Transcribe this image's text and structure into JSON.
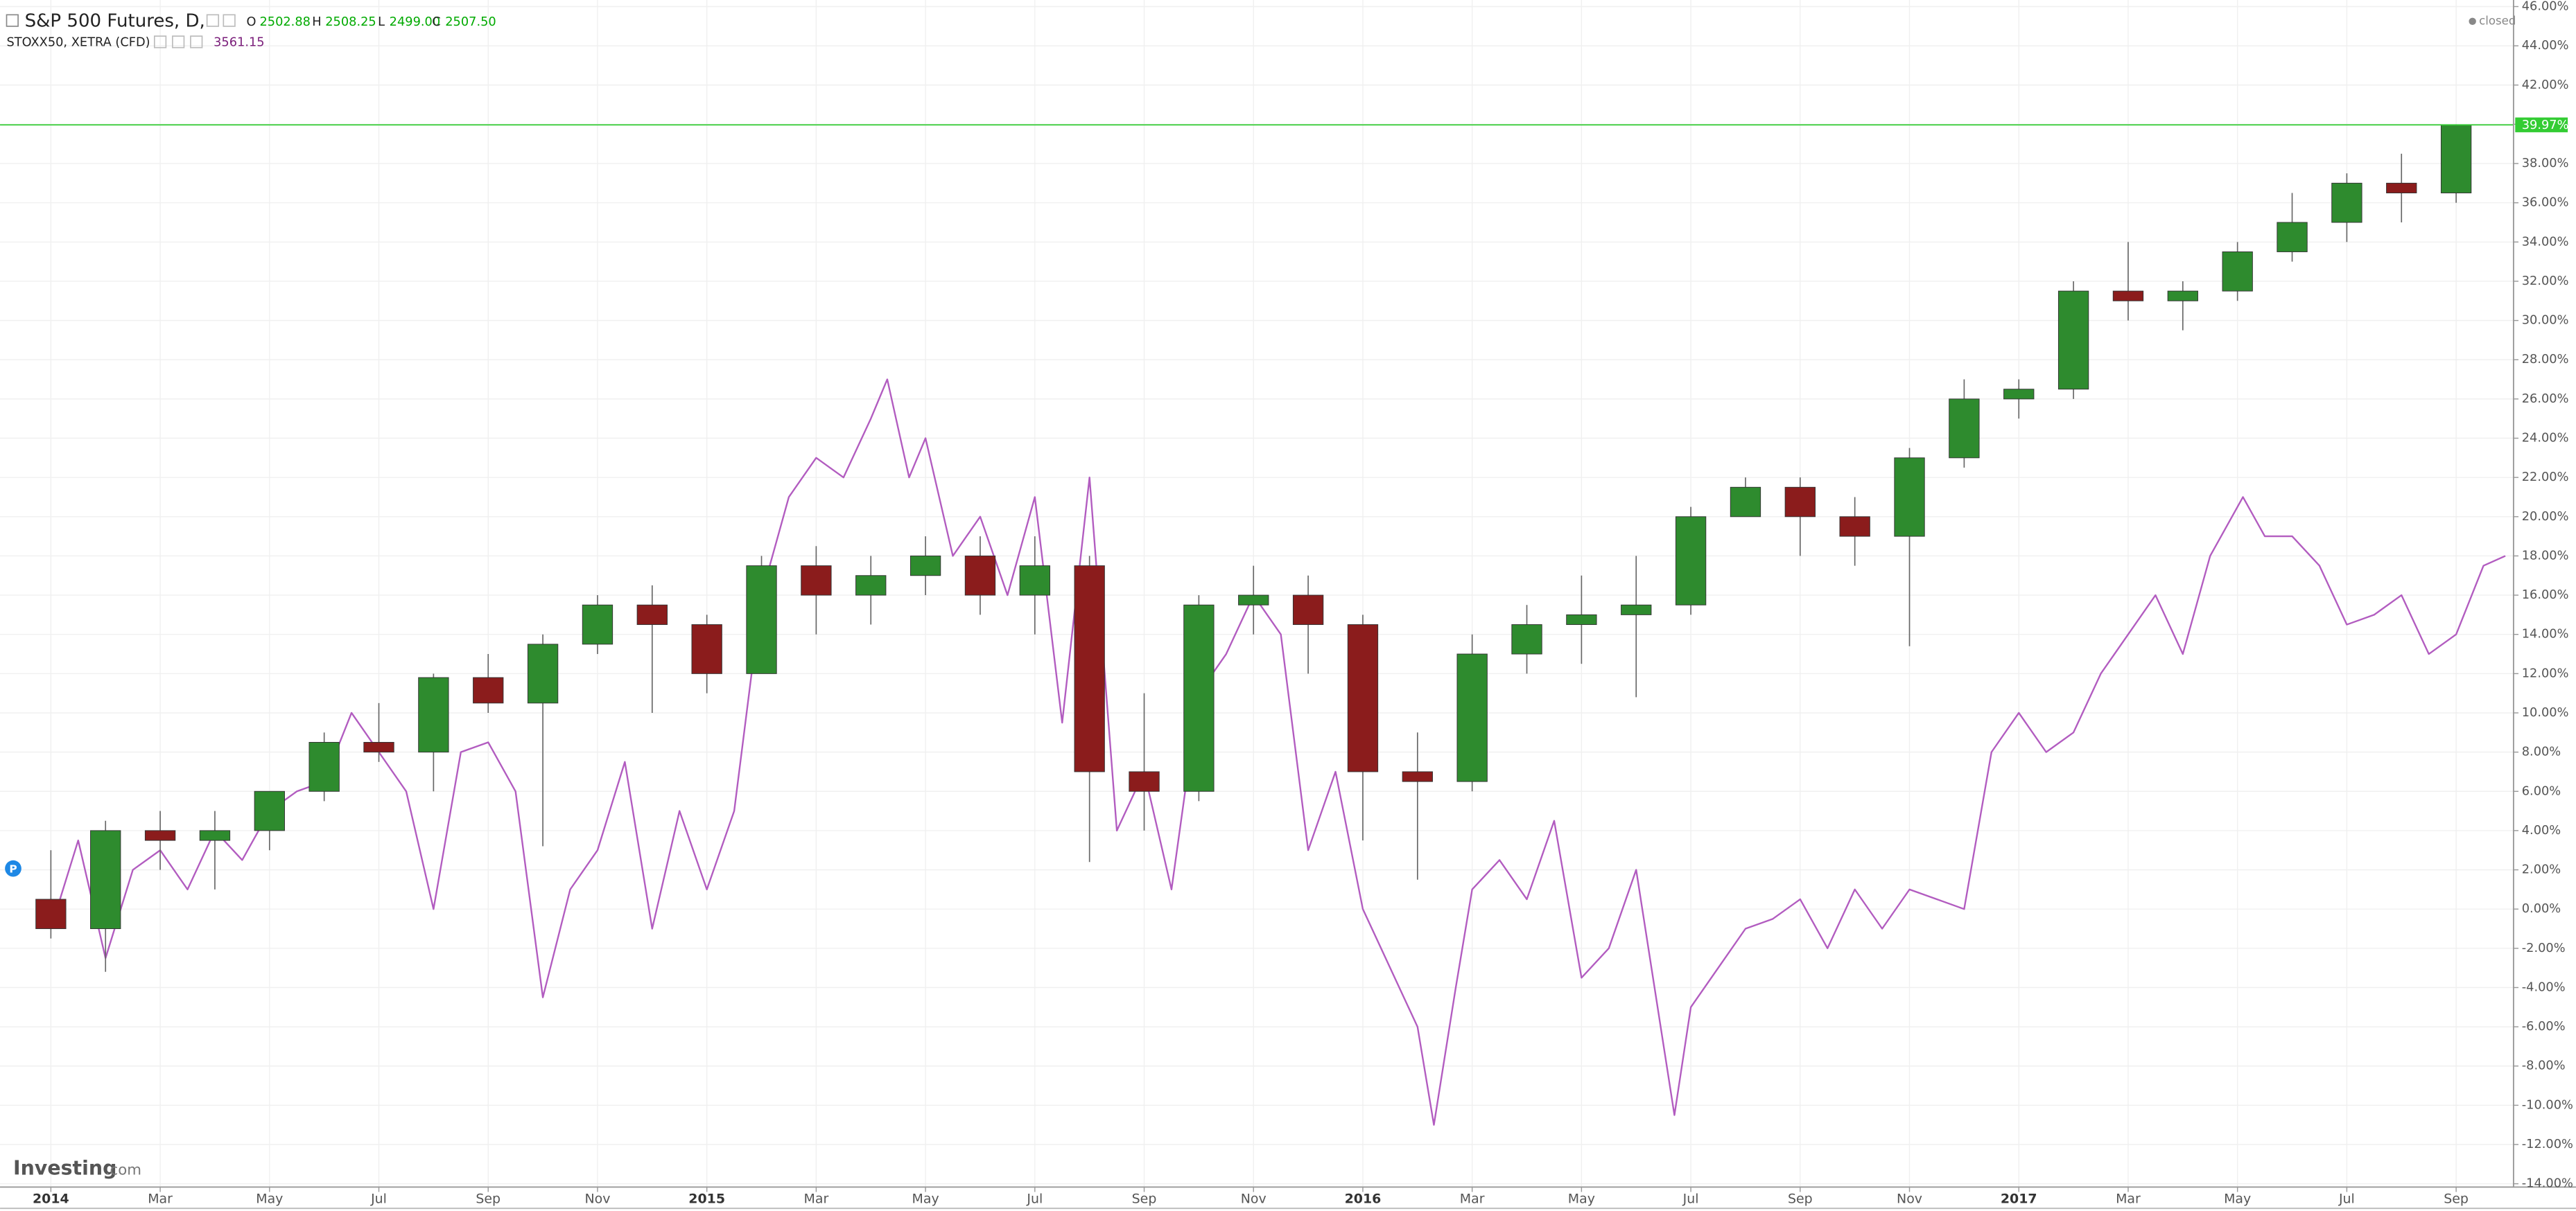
{
  "chart_data": {
    "type": "candlestick",
    "series": [
      {
        "name": "S&P 500 Futures, D,",
        "type": "candlestick",
        "up_color": "#2e8b2e",
        "down_color": "#8b1c1c",
        "x": [
          0,
          1,
          2,
          3,
          4,
          5,
          6,
          7,
          8,
          9,
          10,
          11,
          12,
          13,
          14,
          15,
          16,
          17,
          18,
          19,
          20,
          21,
          22,
          23,
          24,
          25,
          26,
          27,
          28,
          29,
          30,
          31,
          32,
          33,
          34,
          35,
          36,
          37,
          38,
          39,
          40,
          41,
          42,
          43,
          44
        ],
        "open": [
          0.5,
          -1,
          4,
          3.5,
          4,
          6,
          8.5,
          8,
          11.8,
          10.5,
          13.5,
          15.5,
          14.5,
          12,
          17.5,
          16,
          17,
          18,
          16,
          17.5,
          7,
          6,
          15.5,
          16,
          14.5,
          7,
          6.5,
          13,
          14.5,
          15,
          15.5,
          20,
          21.5,
          20,
          19,
          23,
          26,
          26.5,
          31.5,
          31,
          31.5,
          33.5,
          35,
          37,
          36.5
        ],
        "high": [
          3,
          4.5,
          5,
          5,
          6,
          9,
          10.5,
          12,
          13,
          14,
          16,
          16.5,
          15,
          18,
          18.5,
          18,
          19,
          19,
          19,
          18,
          11,
          16,
          17.5,
          17,
          15,
          9,
          14,
          15.5,
          17,
          18,
          20.5,
          22,
          22,
          21,
          23.5,
          27,
          27,
          32,
          34,
          32,
          34,
          36.5,
          37.5,
          38.5,
          40
        ],
        "low": [
          -1.5,
          -3.2,
          2,
          1,
          3,
          5.5,
          7.5,
          6,
          10,
          3.2,
          13,
          10,
          11,
          12,
          14,
          14.5,
          16,
          15,
          14,
          2.4,
          4,
          5.5,
          14,
          12,
          3.5,
          1.5,
          6,
          12,
          12.5,
          10.8,
          15,
          20,
          18,
          17.5,
          13.4,
          22.5,
          25,
          26,
          30,
          29.5,
          31,
          33,
          34,
          35,
          36
        ],
        "close": [
          -1,
          4,
          3.5,
          4,
          6,
          8.5,
          8,
          11.8,
          10.5,
          13.5,
          15.5,
          14.5,
          12,
          17.5,
          16,
          17,
          18,
          16,
          17.5,
          7,
          6,
          15.5,
          16,
          14.5,
          7,
          6.5,
          13,
          14.5,
          15,
          15.5,
          20,
          21.5,
          20,
          19,
          23,
          26,
          26.5,
          31.5,
          31,
          31.5,
          33.5,
          35,
          37,
          36.5,
          39.97
        ]
      },
      {
        "name": "STOXX50, XETRA (CFD)",
        "type": "line",
        "color": "#b25cc0",
        "axis": "y",
        "x": [
          0,
          0.5,
          1,
          1.5,
          2,
          2.5,
          3,
          3.5,
          4,
          4.5,
          5,
          5.5,
          6,
          6.5,
          7,
          7.5,
          8,
          8.5,
          9,
          9.5,
          10,
          10.5,
          11,
          11.5,
          12,
          12.5,
          13,
          13.5,
          14,
          14.5,
          15,
          15.3,
          15.7,
          16,
          16.5,
          17,
          17.5,
          18,
          18.5,
          19,
          19.5,
          20,
          20.5,
          21,
          21.5,
          22,
          22.5,
          23,
          23.5,
          24,
          24.5,
          25,
          25.3,
          25.7,
          26,
          26.5,
          27,
          27.5,
          28,
          28.5,
          29,
          29.7,
          30,
          30.5,
          31,
          31.5,
          32,
          32.5,
          33,
          33.5,
          34,
          34.5,
          35,
          35.5,
          36,
          36.5,
          37,
          37.5,
          38,
          38.5,
          39,
          39.5,
          40.1,
          40.5,
          41,
          41.5,
          42,
          42.5,
          43,
          43.5,
          44,
          44.5,
          44.9
        ],
        "values": [
          -1,
          3.5,
          -2.5,
          2,
          3,
          1,
          4,
          2.5,
          5,
          6,
          6.5,
          10,
          8,
          6,
          0,
          8,
          8.5,
          6,
          -4.5,
          1,
          3,
          7.5,
          -1,
          5,
          1,
          5,
          16,
          21,
          23,
          22,
          25,
          27,
          22,
          24,
          18,
          20,
          16,
          21,
          9.5,
          22,
          4,
          7,
          1,
          11,
          13,
          16,
          14,
          3,
          7,
          0,
          -3,
          -6,
          -11,
          -4,
          1,
          2.5,
          0.5,
          4.5,
          -3.5,
          -2,
          2,
          -10.5,
          -5,
          -3,
          -1,
          -0.5,
          0.5,
          -2,
          1,
          -1,
          1,
          0.5,
          0,
          8,
          10,
          8,
          9,
          12,
          14,
          16,
          13,
          18,
          21,
          19,
          19,
          17.5,
          14.5,
          15,
          16,
          13,
          14,
          17.5,
          18
        ]
      }
    ],
    "ohlc_legend": {
      "o_label": "O",
      "open": "2502.88",
      "h_label": "H",
      "high": "2508.25",
      "l_label": "L",
      "low": "2499.00",
      "c_label": "C",
      "close": "2507.50"
    },
    "compare_value": "3561.15",
    "status": "closed",
    "current": {
      "value": 39.97,
      "label": "39.97%"
    },
    "current_color": "#33cc33",
    "marker": "P",
    "brand": "Investing",
    "brand_suffix": ".com",
    "xlim": [
      -0.93,
      45.05
    ],
    "xticks": [
      {
        "value": 0,
        "label": "2014"
      },
      {
        "value": 2,
        "label": "Mar"
      },
      {
        "value": 4,
        "label": "May"
      },
      {
        "value": 6,
        "label": "Jul"
      },
      {
        "value": 8,
        "label": "Sep"
      },
      {
        "value": 10,
        "label": "Nov"
      },
      {
        "value": 12,
        "label": "2015"
      },
      {
        "value": 14,
        "label": "Mar"
      },
      {
        "value": 16,
        "label": "May"
      },
      {
        "value": 18,
        "label": "Jul"
      },
      {
        "value": 20,
        "label": "Sep"
      },
      {
        "value": 22,
        "label": "Nov"
      },
      {
        "value": 24,
        "label": "2016"
      },
      {
        "value": 26,
        "label": "Mar"
      },
      {
        "value": 28,
        "label": "May"
      },
      {
        "value": 30,
        "label": "Jul"
      },
      {
        "value": 32,
        "label": "Sep"
      },
      {
        "value": 34,
        "label": "Nov"
      },
      {
        "value": 36,
        "label": "2017"
      },
      {
        "value": 38,
        "label": "Mar"
      },
      {
        "value": 40,
        "label": "May"
      },
      {
        "value": 42,
        "label": "Jul"
      },
      {
        "value": 44,
        "label": "Sep"
      }
    ],
    "ylim": [
      -14,
      46
    ],
    "yticks": [
      {
        "value": -14,
        "label": "-14.00%"
      },
      {
        "value": -12,
        "label": "-12.00%"
      },
      {
        "value": -10,
        "label": "-10.00%"
      },
      {
        "value": -8,
        "label": "-8.00%"
      },
      {
        "value": -6,
        "label": "-6.00%"
      },
      {
        "value": -4,
        "label": "-4.00%"
      },
      {
        "value": -2,
        "label": "-2.00%"
      },
      {
        "value": 0,
        "label": "0.00%"
      },
      {
        "value": 2,
        "label": "2.00%"
      },
      {
        "value": 4,
        "label": "4.00%"
      },
      {
        "value": 6,
        "label": "6.00%"
      },
      {
        "value": 8,
        "label": "8.00%"
      },
      {
        "value": 10,
        "label": "10.00%"
      },
      {
        "value": 12,
        "label": "12.00%"
      },
      {
        "value": 14,
        "label": "14.00%"
      },
      {
        "value": 16,
        "label": "16.00%"
      },
      {
        "value": 18,
        "label": "18.00%"
      },
      {
        "value": 20,
        "label": "20.00%"
      },
      {
        "value": 22,
        "label": "22.00%"
      },
      {
        "value": 24,
        "label": "24.00%"
      },
      {
        "value": 26,
        "label": "26.00%"
      },
      {
        "value": 28,
        "label": "28.00%"
      },
      {
        "value": 30,
        "label": "30.00%"
      },
      {
        "value": 32,
        "label": "32.00%"
      },
      {
        "value": 34,
        "label": "34.00%"
      },
      {
        "value": 36,
        "label": "36.00%"
      },
      {
        "value": 38,
        "label": "38.00%"
      },
      {
        "value": 40,
        "label": "40.00%"
      },
      {
        "value": 42,
        "label": "42.00%"
      },
      {
        "value": 44,
        "label": "44.00%"
      },
      {
        "value": 46,
        "label": "46.00%"
      }
    ],
    "grid": true
  }
}
